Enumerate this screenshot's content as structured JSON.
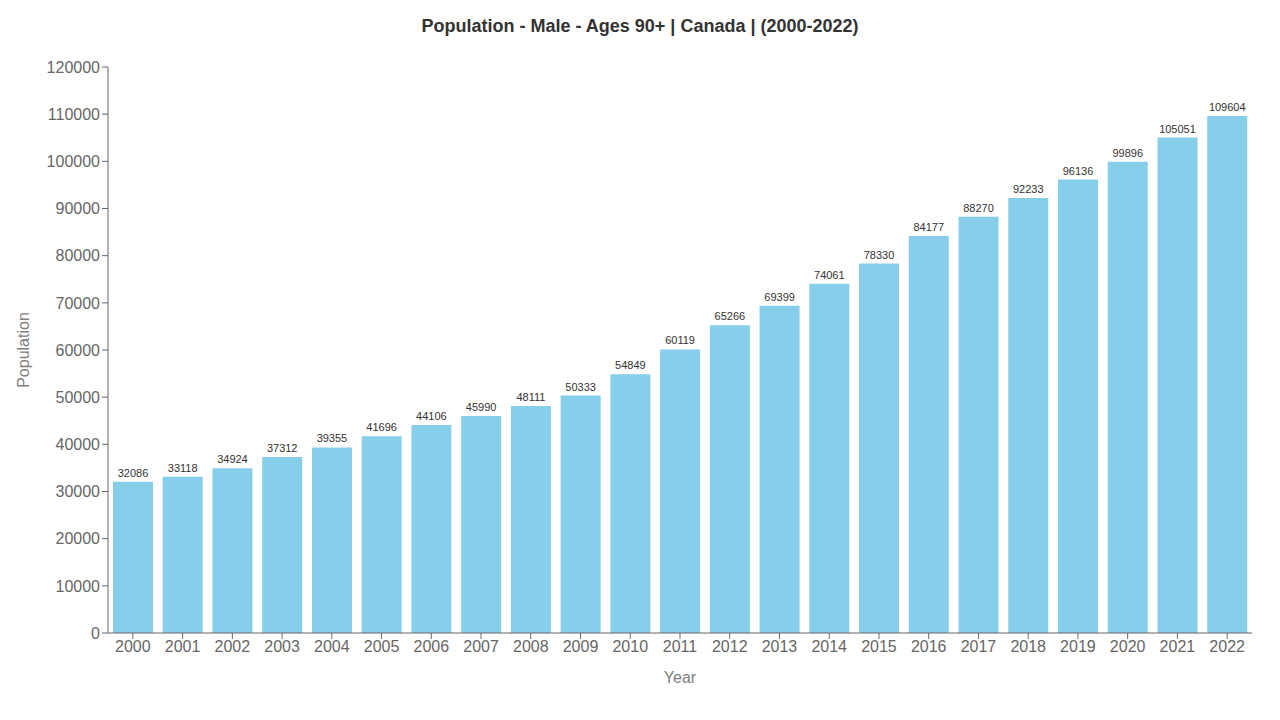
{
  "chart_data": {
    "type": "bar",
    "title": "Population - Male - Ages 90+ | Canada |  (2000-2022)",
    "xlabel": "Year",
    "ylabel": "Population",
    "categories": [
      "2000",
      "2001",
      "2002",
      "2003",
      "2004",
      "2005",
      "2006",
      "2007",
      "2008",
      "2009",
      "2010",
      "2011",
      "2012",
      "2013",
      "2014",
      "2015",
      "2016",
      "2017",
      "2018",
      "2019",
      "2020",
      "2021",
      "2022"
    ],
    "values": [
      32086,
      33118,
      34924,
      37312,
      39355,
      41696,
      44106,
      45990,
      48111,
      50333,
      54849,
      60119,
      65266,
      69399,
      74061,
      78330,
      84177,
      88270,
      92233,
      96136,
      99896,
      105051,
      109604
    ],
    "color": "#87CEEB",
    "ylim": [
      0,
      120000
    ],
    "yticks": [
      0,
      10000,
      20000,
      30000,
      40000,
      50000,
      60000,
      70000,
      80000,
      90000,
      100000,
      110000,
      120000
    ],
    "grid": false,
    "data_labels": true
  }
}
